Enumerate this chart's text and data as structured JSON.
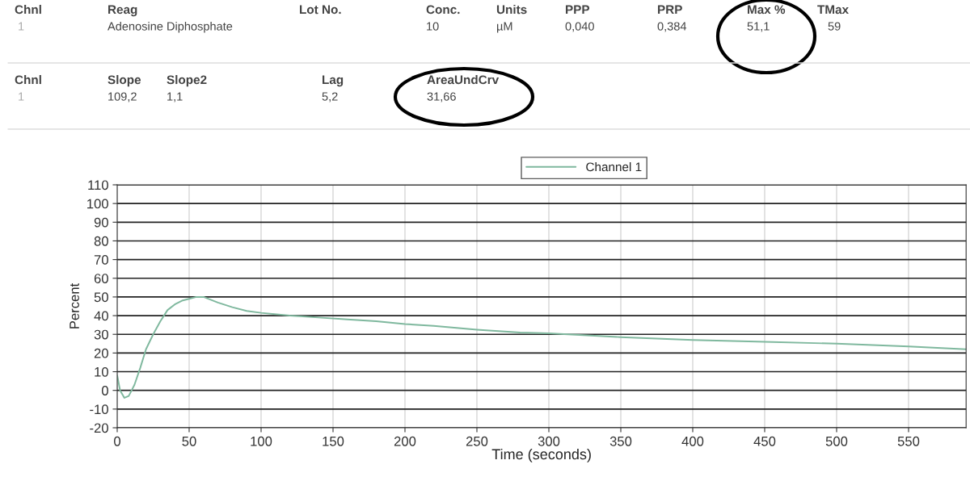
{
  "chart_data": {
    "type": "line",
    "xlabel": "Time (seconds)",
    "ylabel": "Percent",
    "x": [
      0,
      2,
      5,
      8,
      12,
      16,
      20,
      25,
      30,
      35,
      40,
      45,
      50,
      55,
      60,
      65,
      70,
      80,
      90,
      100,
      120,
      140,
      160,
      180,
      200,
      220,
      250,
      280,
      300,
      350,
      400,
      450,
      500,
      550,
      590
    ],
    "series": [
      {
        "name": "Channel 1",
        "color": "#7fb89e",
        "values": [
          8,
          0,
          -4,
          -3,
          3,
          12,
          22,
          30,
          37,
          43,
          46,
          48,
          49,
          50,
          50,
          48.5,
          47,
          44.5,
          42.5,
          41.5,
          40,
          39,
          38,
          37,
          35.5,
          34.5,
          32.5,
          31,
          30.5,
          28.5,
          27,
          26,
          25,
          23.5,
          22
        ]
      }
    ],
    "xlim": [
      0,
      590
    ],
    "xticks": [
      0,
      50,
      100,
      150,
      200,
      250,
      300,
      350,
      400,
      450,
      500,
      550
    ],
    "ylim": [
      -20,
      110
    ],
    "yticks": [
      -20,
      -10,
      0,
      10,
      20,
      30,
      40,
      50,
      60,
      70,
      80,
      90,
      100,
      110
    ],
    "grid": true,
    "legend": "top",
    "marker": "none",
    "line_style": "solid",
    "annotations": [
      "Chnl",
      "Reag",
      "Lot No.",
      "Conc.",
      "Units",
      "PPP",
      "PRP",
      "Max %",
      "TMax",
      "1",
      "Adenosine Diphosphate",
      "10",
      "µM",
      "0,040",
      "0,384",
      "51,1",
      "59",
      "Chnl",
      "Slope",
      "Slope2",
      "Lag",
      "AreaUndCrv",
      "1",
      "109,2",
      "1,1",
      "5,2",
      "31,66"
    ]
  }
}
